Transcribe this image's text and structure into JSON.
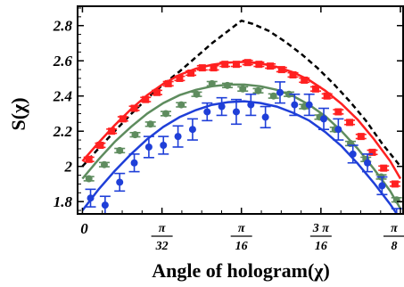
{
  "chart_data": {
    "type": "scatter",
    "title": "",
    "xlabel": "Angle of hologram(χ)",
    "ylabel": "S(χ)",
    "xlim": [
      -0.006,
      0.396
    ],
    "ylim": [
      1.73,
      2.91
    ],
    "y_ticks": [
      "1.8",
      "2",
      "2.2",
      "2.4",
      "2.6",
      "2.8"
    ],
    "y_tick_values": [
      1.8,
      2.0,
      2.2,
      2.4,
      2.6,
      2.8
    ],
    "x_ticks": [
      {
        "value": 0,
        "text": "0"
      },
      {
        "value": 0.0982,
        "num": "π",
        "den": "32"
      },
      {
        "value": 0.1963,
        "num": "π",
        "den": "16"
      },
      {
        "value": 0.2945,
        "num": "3 π",
        "den": "16"
      },
      {
        "value": 0.3927,
        "num": "π",
        "den": "8"
      }
    ],
    "curves": [
      {
        "style": "dashed",
        "color": "#000000",
        "x": [
          0.0,
          0.02,
          0.04,
          0.06,
          0.08,
          0.1,
          0.12,
          0.14,
          0.16,
          0.18,
          0.1963,
          0.21,
          0.23,
          0.25,
          0.27,
          0.29,
          0.31,
          0.33,
          0.35,
          0.37,
          0.3927
        ],
        "y": [
          2.0,
          2.102,
          2.201,
          2.297,
          2.386,
          2.467,
          2.54,
          2.62,
          2.7,
          2.77,
          2.828,
          2.81,
          2.77,
          2.71,
          2.64,
          2.56,
          2.47,
          2.37,
          2.26,
          2.13,
          2.0
        ]
      },
      {
        "style": "solid",
        "color": "#ff2020",
        "x": [
          0.0,
          0.02,
          0.04,
          0.06,
          0.08,
          0.1,
          0.12,
          0.14,
          0.16,
          0.18,
          0.2,
          0.22,
          0.24,
          0.26,
          0.28,
          0.3,
          0.32,
          0.34,
          0.36,
          0.38,
          0.3927
        ],
        "y": [
          2.03,
          2.135,
          2.235,
          2.325,
          2.405,
          2.47,
          2.52,
          2.555,
          2.578,
          2.59,
          2.594,
          2.585,
          2.565,
          2.535,
          2.49,
          2.43,
          2.355,
          2.265,
          2.155,
          2.03,
          1.93
        ]
      },
      {
        "style": "solid",
        "color": "#5e8c5e",
        "x": [
          0.0,
          0.02,
          0.04,
          0.06,
          0.08,
          0.1,
          0.12,
          0.14,
          0.16,
          0.18,
          0.2,
          0.22,
          0.24,
          0.26,
          0.28,
          0.3,
          0.32,
          0.34,
          0.36,
          0.38,
          0.3927
        ],
        "y": [
          1.93,
          2.04,
          2.14,
          2.225,
          2.3,
          2.36,
          2.405,
          2.435,
          2.455,
          2.465,
          2.465,
          2.455,
          2.435,
          2.4,
          2.35,
          2.285,
          2.2,
          2.1,
          1.985,
          1.86,
          1.76
        ]
      },
      {
        "style": "solid",
        "color": "#1f3fd8",
        "x": [
          0.0,
          0.02,
          0.04,
          0.06,
          0.08,
          0.1,
          0.12,
          0.14,
          0.16,
          0.18,
          0.2,
          0.22,
          0.24,
          0.26,
          0.28,
          0.3,
          0.32,
          0.34,
          0.36,
          0.38,
          0.3927
        ],
        "y": [
          1.75,
          1.87,
          1.975,
          2.07,
          2.155,
          2.225,
          2.28,
          2.32,
          2.35,
          2.365,
          2.37,
          2.36,
          2.34,
          2.305,
          2.26,
          2.195,
          2.115,
          2.015,
          1.905,
          1.785,
          1.7
        ]
      }
    ],
    "series": [
      {
        "color": "#ff2020",
        "marker": "square",
        "x": [
          0.008,
          0.022,
          0.036,
          0.05,
          0.064,
          0.078,
          0.092,
          0.106,
          0.12,
          0.134,
          0.148,
          0.162,
          0.176,
          0.19,
          0.204,
          0.218,
          0.232,
          0.246,
          0.26,
          0.274,
          0.288,
          0.302,
          0.316,
          0.33,
          0.344,
          0.358,
          0.372,
          0.386
        ],
        "y": [
          2.04,
          2.12,
          2.2,
          2.27,
          2.33,
          2.38,
          2.42,
          2.47,
          2.5,
          2.53,
          2.56,
          2.56,
          2.58,
          2.58,
          2.59,
          2.58,
          2.57,
          2.55,
          2.52,
          2.49,
          2.44,
          2.4,
          2.31,
          2.25,
          2.17,
          2.08,
          1.99,
          1.9
        ]
      },
      {
        "color": "#5e8c5e",
        "marker": "circle",
        "x": [
          0.008,
          0.027,
          0.046,
          0.065,
          0.084,
          0.103,
          0.122,
          0.141,
          0.16,
          0.179,
          0.198,
          0.217,
          0.236,
          0.255,
          0.274,
          0.293,
          0.312,
          0.331,
          0.35,
          0.369,
          0.388
        ],
        "y": [
          1.93,
          2.01,
          2.09,
          2.18,
          2.24,
          2.3,
          2.35,
          2.41,
          2.47,
          2.46,
          2.44,
          2.43,
          2.4,
          2.41,
          2.34,
          2.28,
          2.21,
          2.13,
          2.04,
          1.94,
          1.81
        ]
      },
      {
        "color": "#1f3fd8",
        "marker": "circle",
        "x": [
          0.01,
          0.028,
          0.046,
          0.064,
          0.082,
          0.1,
          0.118,
          0.136,
          0.154,
          0.172,
          0.19,
          0.208,
          0.226,
          0.244,
          0.262,
          0.28,
          0.298,
          0.316,
          0.334,
          0.352,
          0.37,
          0.388
        ],
        "y": [
          1.82,
          1.78,
          1.91,
          2.02,
          2.11,
          2.12,
          2.17,
          2.21,
          2.31,
          2.34,
          2.31,
          2.35,
          2.28,
          2.42,
          2.35,
          2.35,
          2.27,
          2.21,
          2.07,
          2.02,
          1.89,
          1.71
        ],
        "err": [
          0.05,
          0.05,
          0.05,
          0.05,
          0.06,
          0.05,
          0.06,
          0.06,
          0.05,
          0.05,
          0.07,
          0.06,
          0.06,
          0.06,
          0.06,
          0.06,
          0.06,
          0.06,
          0.05,
          0.05,
          0.05,
          0.05
        ]
      }
    ],
    "grid": false,
    "legend": "none"
  }
}
